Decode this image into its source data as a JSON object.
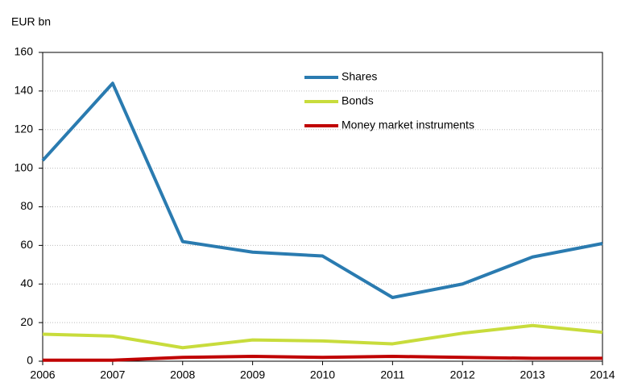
{
  "chart_data": {
    "type": "line",
    "ylabel": "EUR bn",
    "x": [
      2006,
      2007,
      2008,
      2009,
      2010,
      2011,
      2012,
      2013,
      2014
    ],
    "xlim": [
      2006,
      2014
    ],
    "xticks": [
      2006,
      2007,
      2008,
      2009,
      2010,
      2011,
      2012,
      2013,
      2014
    ],
    "ylim": [
      0,
      160
    ],
    "yticks": [
      0,
      20,
      40,
      60,
      80,
      100,
      120,
      140,
      160
    ],
    "grid": true,
    "legend": "upper center",
    "series": [
      {
        "name": "Shares",
        "color": "#2a7bb0",
        "values": [
          104,
          144,
          62,
          56.5,
          54.5,
          33,
          40,
          54,
          61
        ]
      },
      {
        "name": "Bonds",
        "color": "#c8dc3c",
        "values": [
          14,
          13,
          7,
          11,
          10.5,
          9,
          14.5,
          18.5,
          15
        ]
      },
      {
        "name": "Money market instruments",
        "color": "#c00000",
        "values": [
          0.5,
          0.5,
          2,
          2.5,
          2,
          2.5,
          2,
          1.5,
          1.5
        ]
      }
    ]
  }
}
